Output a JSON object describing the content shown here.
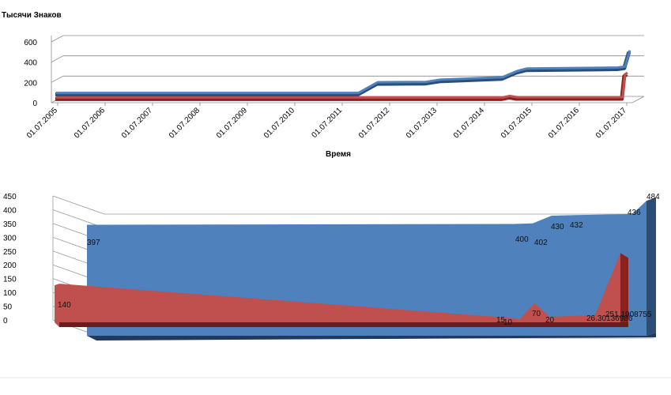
{
  "chart_data": [
    {
      "type": "line",
      "ylabel": "Тысячи Знаков",
      "xlabel": "Время",
      "yticks": [
        "0",
        "200",
        "400",
        "600"
      ],
      "ylim": [
        0,
        600
      ],
      "xticks": [
        "01.07.2005",
        "01.07.2006",
        "01.07.2007",
        "01.07.2008",
        "01.07.2009",
        "01.07.2010",
        "01.07.2011",
        "01.07.2012",
        "01.07.2013",
        "01.07.2014",
        "01.07.2015",
        "01.07.2016",
        "01.07.2017"
      ],
      "grid": true,
      "series": [
        {
          "color": "#4f81bd",
          "points": [
            [
              2005.5,
              50
            ],
            [
              2011.8,
              50
            ],
            [
              2012.2,
              155
            ],
            [
              2013.2,
              158
            ],
            [
              2013.5,
              180
            ],
            [
              2014.8,
              205
            ],
            [
              2015.1,
              265
            ],
            [
              2015.3,
              290
            ],
            [
              2017.2,
              300
            ],
            [
              2017.35,
              310
            ],
            [
              2017.45,
              470
            ]
          ]
        },
        {
          "color": "#c0504d",
          "points": [
            [
              2005.5,
              5
            ],
            [
              2014.8,
              5
            ],
            [
              2014.95,
              20
            ],
            [
              2015.1,
              8
            ],
            [
              2017.3,
              8
            ],
            [
              2017.35,
              230
            ],
            [
              2017.4,
              250
            ]
          ]
        }
      ]
    },
    {
      "type": "area",
      "yticks": [
        "0",
        "50",
        "100",
        "150",
        "200",
        "250",
        "300",
        "350",
        "400",
        "450"
      ],
      "ylim": [
        0,
        450
      ],
      "grid": true,
      "series": [
        {
          "color": "#4f81bd",
          "points": [
            [
              0,
              397
            ],
            [
              90,
              400
            ],
            [
              94,
              402
            ],
            [
              98,
              430
            ],
            [
              103,
              432
            ],
            [
              115,
              436
            ],
            [
              118,
              484
            ]
          ],
          "labels": [
            "397",
            "400",
            "402",
            "430",
            "432",
            "436",
            "484"
          ]
        },
        {
          "color": "#c0504d",
          "points": [
            [
              0,
              140
            ],
            [
              90,
              15
            ],
            [
              91,
              10
            ],
            [
              94,
              70
            ],
            [
              97,
              20
            ],
            [
              106,
              26.30136986
            ],
            [
              111,
              251.1908755
            ]
          ],
          "labels": [
            "140",
            "15",
            "10",
            "70",
            "20",
            "26.30136986",
            "251.1908755"
          ]
        }
      ]
    }
  ]
}
